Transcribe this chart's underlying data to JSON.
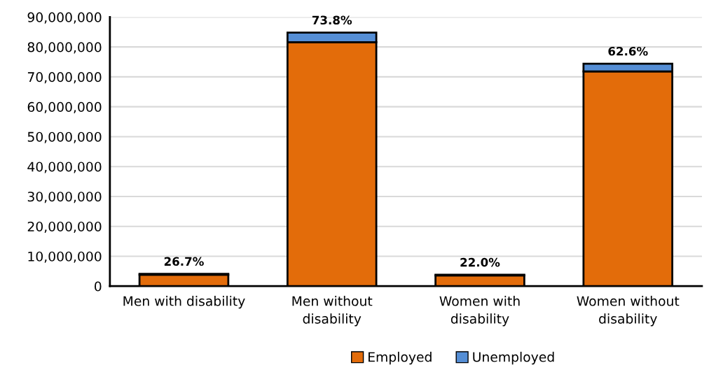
{
  "chart_data": {
    "type": "bar",
    "stacked": true,
    "categories": [
      "Men with disability",
      "Men without disability",
      "Women with disability",
      "Women without disability"
    ],
    "series": [
      {
        "name": "Employed",
        "color": "#e36c0a",
        "values": [
          3800000,
          81600000,
          3600000,
          71800000
        ]
      },
      {
        "name": "Unemployed",
        "color": "#558ed5",
        "values": [
          300000,
          3200000,
          200000,
          2600000
        ]
      }
    ],
    "ylim": [
      0,
      90000000
    ],
    "yticks": [
      {
        "value": 0,
        "label": "0"
      },
      {
        "value": 10000000,
        "label": "10,000,000"
      },
      {
        "value": 20000000,
        "label": "20,000,000"
      },
      {
        "value": 30000000,
        "label": "30,000,000"
      },
      {
        "value": 40000000,
        "label": "40,000,000"
      },
      {
        "value": 50000000,
        "label": "50,000,000"
      },
      {
        "value": 60000000,
        "label": "60,000,000"
      },
      {
        "value": 70000000,
        "label": "70,000,000"
      },
      {
        "value": 80000000,
        "label": "80,000,000"
      },
      {
        "value": 90000000,
        "label": "90,000,000"
      }
    ],
    "grid": "y",
    "legend": "bottom",
    "annotations": [
      {
        "text": "26.7%",
        "x": "Men with disability",
        "y": 4100000
      },
      {
        "text": "73.8%",
        "x": "Men without disability",
        "y": 84800000
      },
      {
        "text": "22.0%",
        "x": "Women with disability",
        "y": 3800000
      },
      {
        "text": "62.6%",
        "x": "Women without disability",
        "y": 74400000
      }
    ]
  }
}
